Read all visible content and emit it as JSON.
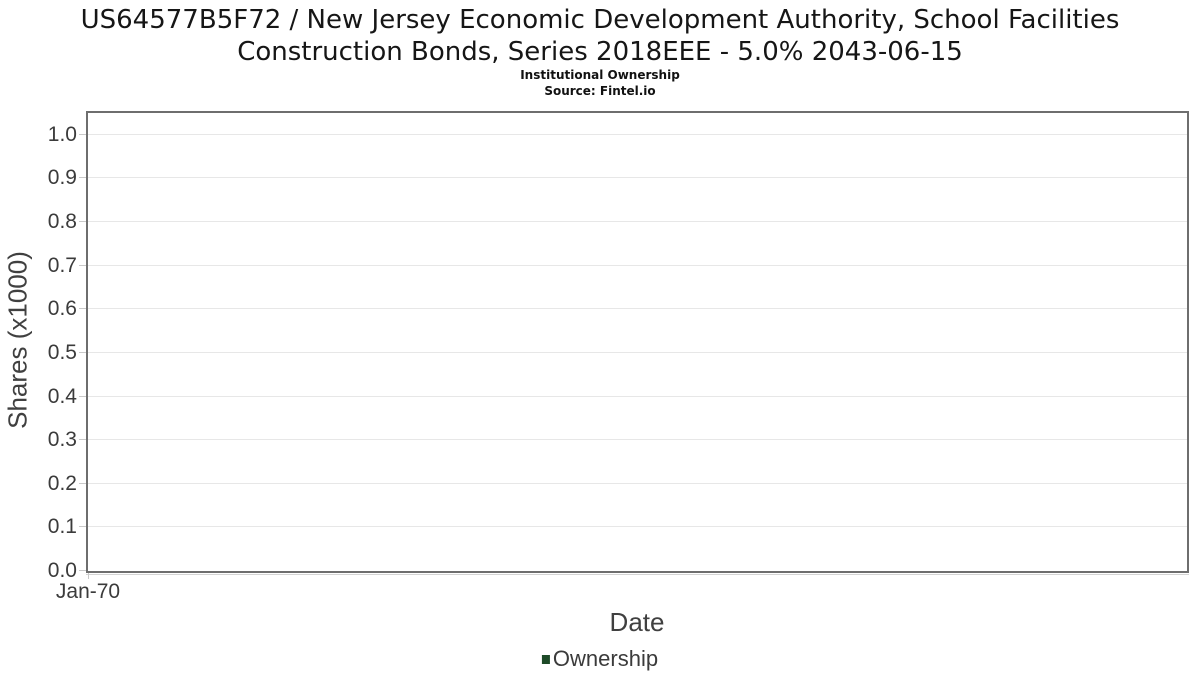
{
  "header": {
    "title_line1": "US64577B5F72 / New Jersey Economic Development Authority, School Facilities",
    "title_line2": "Construction Bonds, Series 2018EEE - 5.0% 2043-06-15",
    "subtitle": "Institutional Ownership",
    "source": "Source: Fintel.io"
  },
  "chart_data": {
    "type": "line",
    "title": "US64577B5F72 / New Jersey Economic Development Authority, School Facilities Construction Bonds, Series 2018EEE - 5.0% 2043-06-15",
    "subtitle": "Institutional Ownership",
    "source": "Source: Fintel.io",
    "xlabel": "Date",
    "ylabel": "Shares (x1000)",
    "x_ticks": [
      {
        "label": "Jan-70",
        "pos": 0
      }
    ],
    "y_ticks": [
      "0.0",
      "0.1",
      "0.2",
      "0.3",
      "0.4",
      "0.5",
      "0.6",
      "0.7",
      "0.8",
      "0.9",
      "1.0"
    ],
    "ylim": [
      0,
      1.05
    ],
    "grid": true,
    "legend_position": "bottom",
    "series": [
      {
        "name": "Ownership",
        "color": "#1d4a28",
        "x": [],
        "values": []
      }
    ]
  },
  "colors": {
    "plot_border": "#6e6e6e",
    "gridline": "#e7e7e7",
    "tick_mark": "#c9c9c9",
    "tick_label": "#3b3b3b",
    "axis_title": "#404040",
    "series_ownership": "#1d4a28"
  }
}
